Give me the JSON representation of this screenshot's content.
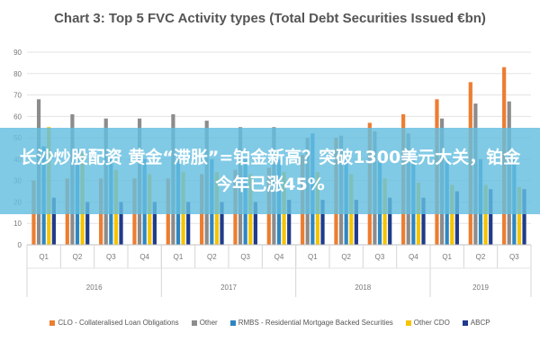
{
  "banner": {
    "text": "长沙炒股配资 黄金“滞胀”=铂金新高？突破1300美元大关，铂金今年已涨45%"
  },
  "chart_data": {
    "type": "bar",
    "title": "Chart 3: Top 5 FVC Activity types (Total Debt Securities Issued €bn)",
    "ylim": [
      0,
      90
    ],
    "yticks": [
      0,
      10,
      20,
      30,
      40,
      50,
      60,
      70,
      80,
      90
    ],
    "grid": true,
    "legend_position": "bottom",
    "categories": [
      "Q1",
      "Q2",
      "Q3",
      "Q4",
      "Q1",
      "Q2",
      "Q3",
      "Q4",
      "Q1",
      "Q2",
      "Q3",
      "Q4",
      "Q1",
      "Q2",
      "Q3"
    ],
    "groups": [
      {
        "label": "2016",
        "count": 4
      },
      {
        "label": "2017",
        "count": 4
      },
      {
        "label": "2018",
        "count": 4
      },
      {
        "label": "2019",
        "count": 3
      }
    ],
    "series": [
      {
        "name": "CLO - Collateralised Loan Obligations",
        "color": "#ED7D31",
        "values": [
          30,
          31,
          31,
          31,
          31,
          33,
          35,
          36,
          42,
          50,
          57,
          61,
          68,
          76,
          83
        ]
      },
      {
        "name": "Other",
        "color": "#8C8C8C",
        "values": [
          68,
          61,
          59,
          59,
          61,
          58,
          55,
          55,
          50,
          51,
          53,
          52,
          59,
          66,
          67
        ]
      },
      {
        "name": "RMBS - Residential Mortgage Backed Securities",
        "color": "#2E86C1",
        "values": [
          46,
          45,
          40,
          40,
          40,
          40,
          40,
          40,
          52,
          40,
          40,
          40,
          40,
          40,
          40
        ]
      },
      {
        "name": "Other CDO",
        "color": "#F5C400",
        "values": [
          55,
          43,
          35,
          33,
          34,
          34,
          33,
          34,
          34,
          33,
          31,
          29,
          28,
          28,
          27
        ]
      },
      {
        "name": "ABCP",
        "color": "#1F3B8C",
        "values": [
          22,
          20,
          20,
          20,
          20,
          20,
          20,
          21,
          21,
          21,
          22,
          22,
          25,
          26,
          26
        ]
      }
    ]
  }
}
